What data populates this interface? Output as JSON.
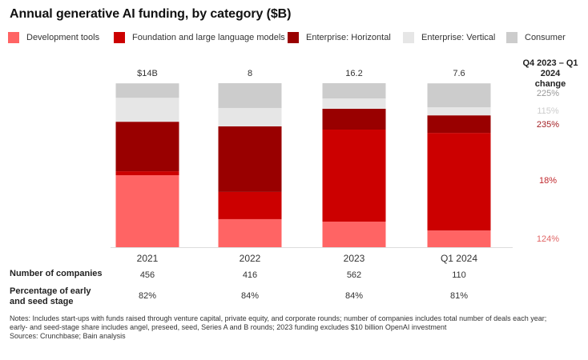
{
  "title": "Annual generative AI funding, by category ($B)",
  "legend": [
    {
      "label": "Development tools",
      "color": "#FF6464"
    },
    {
      "label": "Foundation and large language models",
      "color": "#CC0000"
    },
    {
      "label": "Enterprise: Horizontal",
      "color": "#990000"
    },
    {
      "label": "Enterprise: Vertical",
      "color": "#E6E6E6"
    },
    {
      "label": "Consumer",
      "color": "#CCCCCC"
    }
  ],
  "change_header": [
    "Q4 2023 – Q1 2024",
    "change"
  ],
  "row_labels": {
    "companies": "Number of companies",
    "early_stage_1": "Percentage of early",
    "early_stage_2": "and seed stage"
  },
  "notes": [
    "Notes: Includes start-ups with funds raised through venture capital, private equity, and corporate rounds; number of companies includes total number of deals each year;",
    "early- and seed-stage share includes angel, preseed, seed, Series A and B rounds; 2023 funding excludes $10 billion OpenAI investment",
    "Sources: Crunchbase; Bain analysis"
  ],
  "chart_data": {
    "type": "bar",
    "stacked": true,
    "normalized": true,
    "title": "Annual generative AI funding, by category ($B)",
    "xlabel": "",
    "ylabel": "",
    "ylim": [
      0,
      100
    ],
    "grid": false,
    "legend_position": "top",
    "categories": [
      "2021",
      "2022",
      "2023",
      "Q1 2024"
    ],
    "totals": [
      "$14B",
      "8",
      "16.2",
      "7.6"
    ],
    "series": [
      {
        "name": "Development tools",
        "color": "#FF6464",
        "values": [
          43.9,
          17.1,
          15.6,
          10.2
        ],
        "change": "124%",
        "change_color": "#E06666"
      },
      {
        "name": "Foundation and large language models",
        "color": "#CC0000",
        "values": [
          2.4,
          16.6,
          56.1,
          59.5
        ],
        "change": "18%",
        "change_color": "#C0282D"
      },
      {
        "name": "Enterprise: Horizontal",
        "color": "#990000",
        "values": [
          30.2,
          40.0,
          12.7,
          10.7
        ],
        "change": "235%",
        "change_color": "#A31F24"
      },
      {
        "name": "Enterprise: Vertical",
        "color": "#E6E6E6",
        "values": [
          14.6,
          11.2,
          6.3,
          4.9
        ],
        "change": "115%",
        "change_color": "#CCCCCC"
      },
      {
        "name": "Consumer",
        "color": "#CCCCCC",
        "values": [
          8.8,
          15.1,
          9.3,
          14.6
        ],
        "change": "225%",
        "change_color": "#999999"
      }
    ],
    "number_of_companies": [
      "456",
      "416",
      "562",
      "110"
    ],
    "early_seed_share": [
      "82%",
      "84%",
      "84%",
      "81%"
    ]
  }
}
